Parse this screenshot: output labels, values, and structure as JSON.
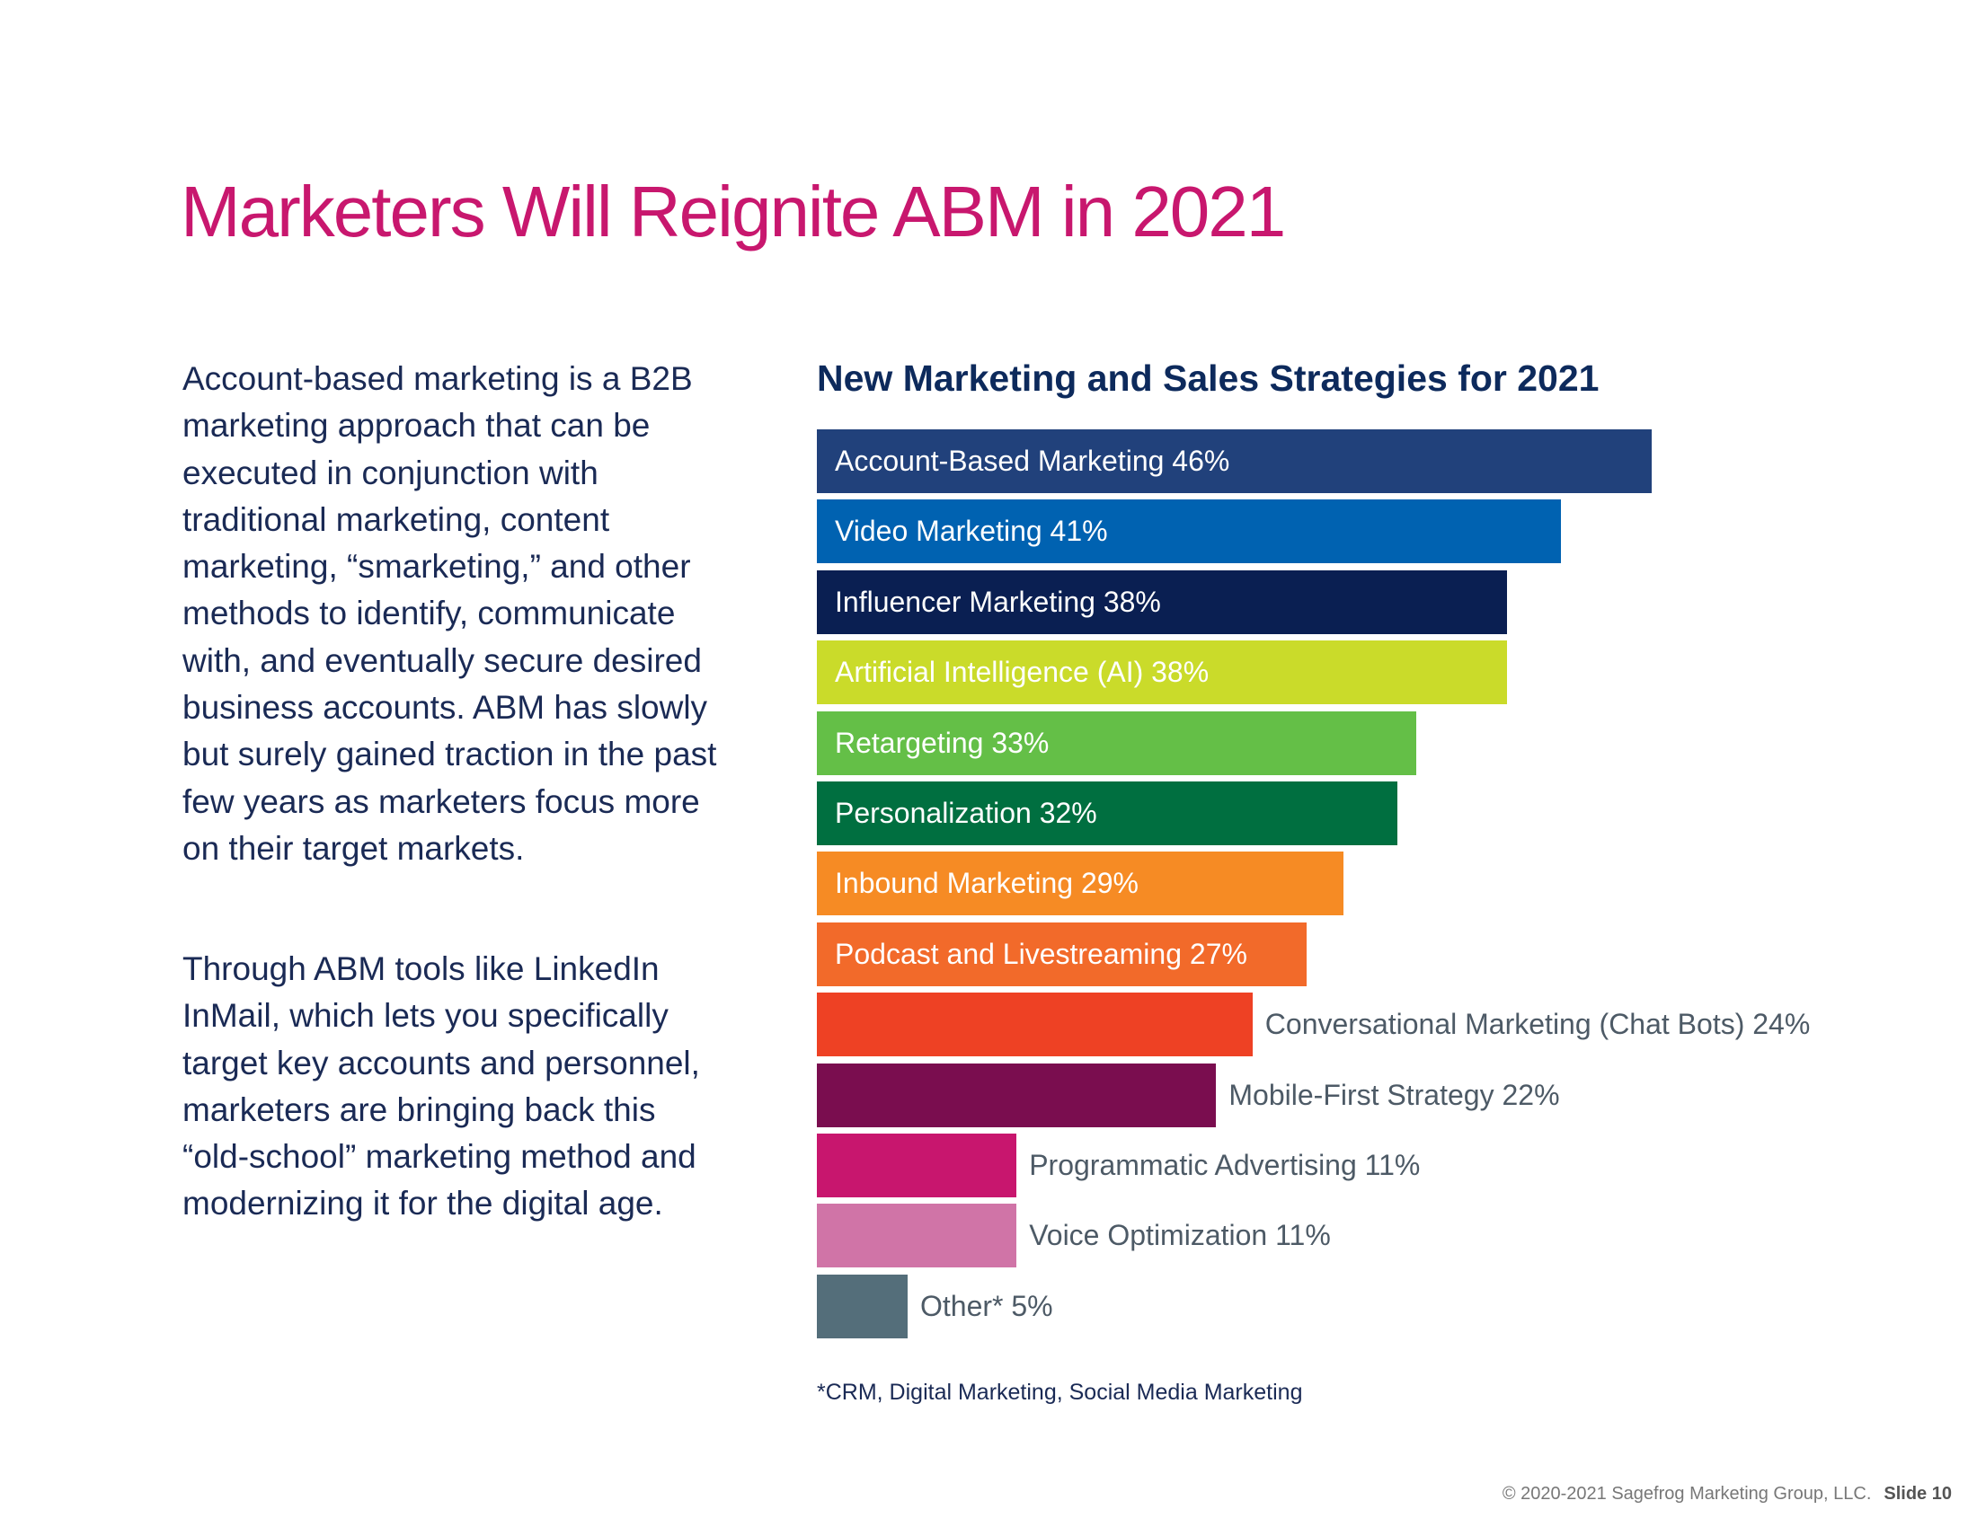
{
  "title": "Marketers Will Reignite ABM in 2021",
  "paragraphs": [
    "Account-based marketing is a B2B marketing approach that can be executed in conjunction with traditional marketing, content marketing, “smarketing,” and other methods to identify, communicate with, and eventually secure desired business accounts. ABM has slowly but surely gained traction in the past few years as marketers focus more on their target markets.",
    "Through ABM tools like LinkedIn InMail, which lets you specifically target key accounts and personnel, marketers are bringing back this “old-school” marketing method and modernizing it for the digital age."
  ],
  "chart_data": {
    "type": "bar",
    "orientation": "horizontal",
    "title": "New Marketing and Sales Strategies for 2021",
    "unit": "%",
    "categories": [
      "Account-Based Marketing",
      "Video Marketing",
      "Influencer Marketing",
      "Artificial Intelligence (AI)",
      "Retargeting",
      "Personalization",
      "Inbound Marketing",
      "Podcast and Livestreaming",
      "Conversational Marketing (Chat Bots)",
      "Mobile-First Strategy",
      "Programmatic Advertising",
      "Voice Optimization",
      "Other*"
    ],
    "values": [
      46,
      41,
      38,
      38,
      33,
      32,
      29,
      27,
      24,
      22,
      11,
      11,
      5
    ],
    "colors": [
      "#21417b",
      "#0062b1",
      "#0a1f52",
      "#cadb2a",
      "#64bf47",
      "#006f40",
      "#f68b24",
      "#f26a2a",
      "#ee4124",
      "#7a0d4f",
      "#c8166e",
      "#d074a7",
      "#546e7a"
    ],
    "grid": false,
    "footnote": "*CRM, Digital Marketing, Social Media Marketing"
  },
  "footer": {
    "copyright": "© 2020-2021 Sagefrog Marketing Group, LLC.",
    "slide": "Slide 10"
  }
}
